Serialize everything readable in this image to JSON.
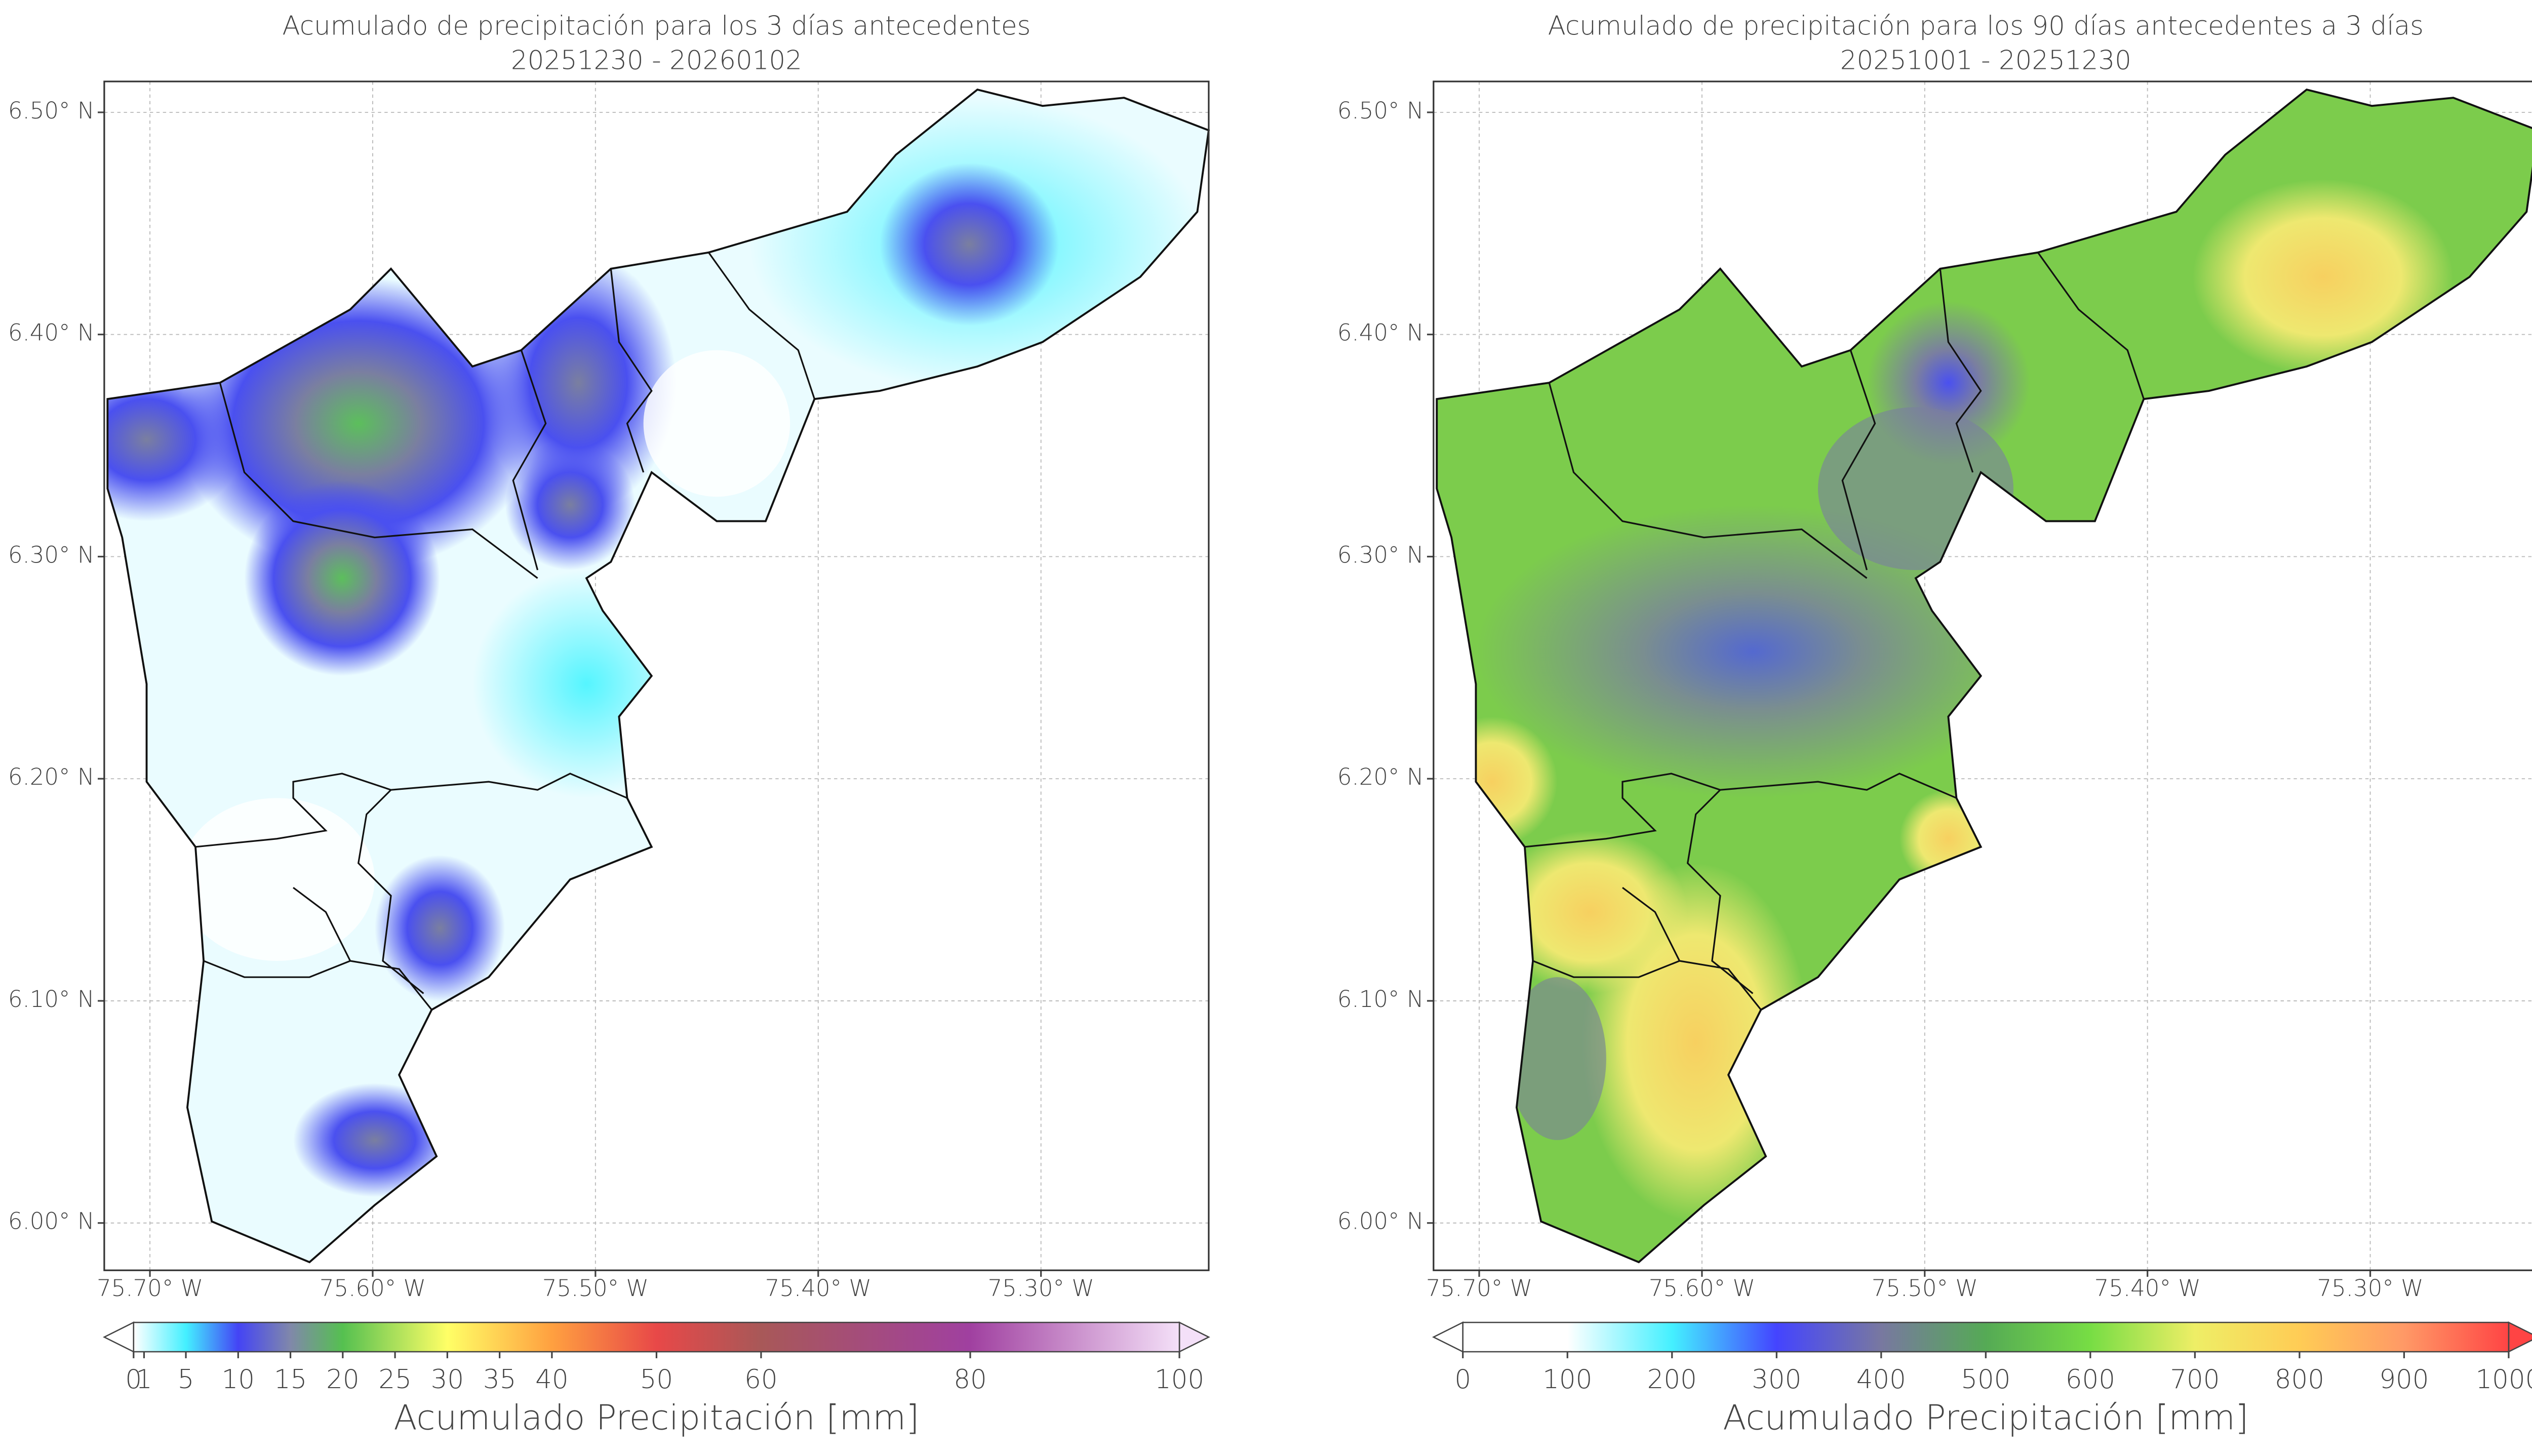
{
  "maps": [
    {
      "title": "Acumulado de precipitación para los 3 días antecedentes",
      "subtitle": "20251230 - 20260102",
      "xlim": [
        -75.7205,
        -75.2247
      ],
      "ylim": [
        5.9787,
        6.5139
      ],
      "xticks": [
        {
          "value": -75.7,
          "label": "75.70° W"
        },
        {
          "value": -75.6,
          "label": "75.60° W"
        },
        {
          "value": -75.5,
          "label": "75.50° W"
        },
        {
          "value": -75.4,
          "label": "75.40° W"
        },
        {
          "value": -75.3,
          "label": "75.30° W"
        }
      ],
      "yticks": [
        {
          "value": 6.0,
          "label": "6.00° N"
        },
        {
          "value": 6.1,
          "label": "6.10° N"
        },
        {
          "value": 6.2,
          "label": "6.20° N"
        },
        {
          "value": 6.3,
          "label": "6.30° N"
        },
        {
          "value": 6.4,
          "label": "6.40° N"
        },
        {
          "value": 6.5,
          "label": "6.50° N"
        }
      ],
      "colorbar": {
        "ticks": [
          0,
          1,
          5,
          10,
          15,
          20,
          25,
          30,
          35,
          40,
          50,
          60,
          80,
          100
        ],
        "label": "Acumulado Precipitación [mm]"
      }
    },
    {
      "title": "Acumulado de precipitación para los 90 días antecedentes a 3 días",
      "subtitle": "20251001 - 20251230",
      "xlim": [
        -75.7205,
        -75.2247
      ],
      "ylim": [
        5.9787,
        6.5139
      ],
      "xticks": [
        {
          "value": -75.7,
          "label": "75.70° W"
        },
        {
          "value": -75.6,
          "label": "75.60° W"
        },
        {
          "value": -75.5,
          "label": "75.50° W"
        },
        {
          "value": -75.4,
          "label": "75.40° W"
        },
        {
          "value": -75.3,
          "label": "75.30° W"
        }
      ],
      "yticks": [
        {
          "value": 6.0,
          "label": "6.00° N"
        },
        {
          "value": 6.1,
          "label": "6.10° N"
        },
        {
          "value": 6.2,
          "label": "6.20° N"
        },
        {
          "value": 6.3,
          "label": "6.30° N"
        },
        {
          "value": 6.4,
          "label": "6.40° N"
        },
        {
          "value": 6.5,
          "label": "6.50° N"
        }
      ],
      "colorbar": {
        "ticks": [
          0,
          100,
          200,
          300,
          400,
          500,
          600,
          700,
          800,
          900,
          1000
        ],
        "label": "Acumulado Precipitación [mm]"
      }
    }
  ]
}
